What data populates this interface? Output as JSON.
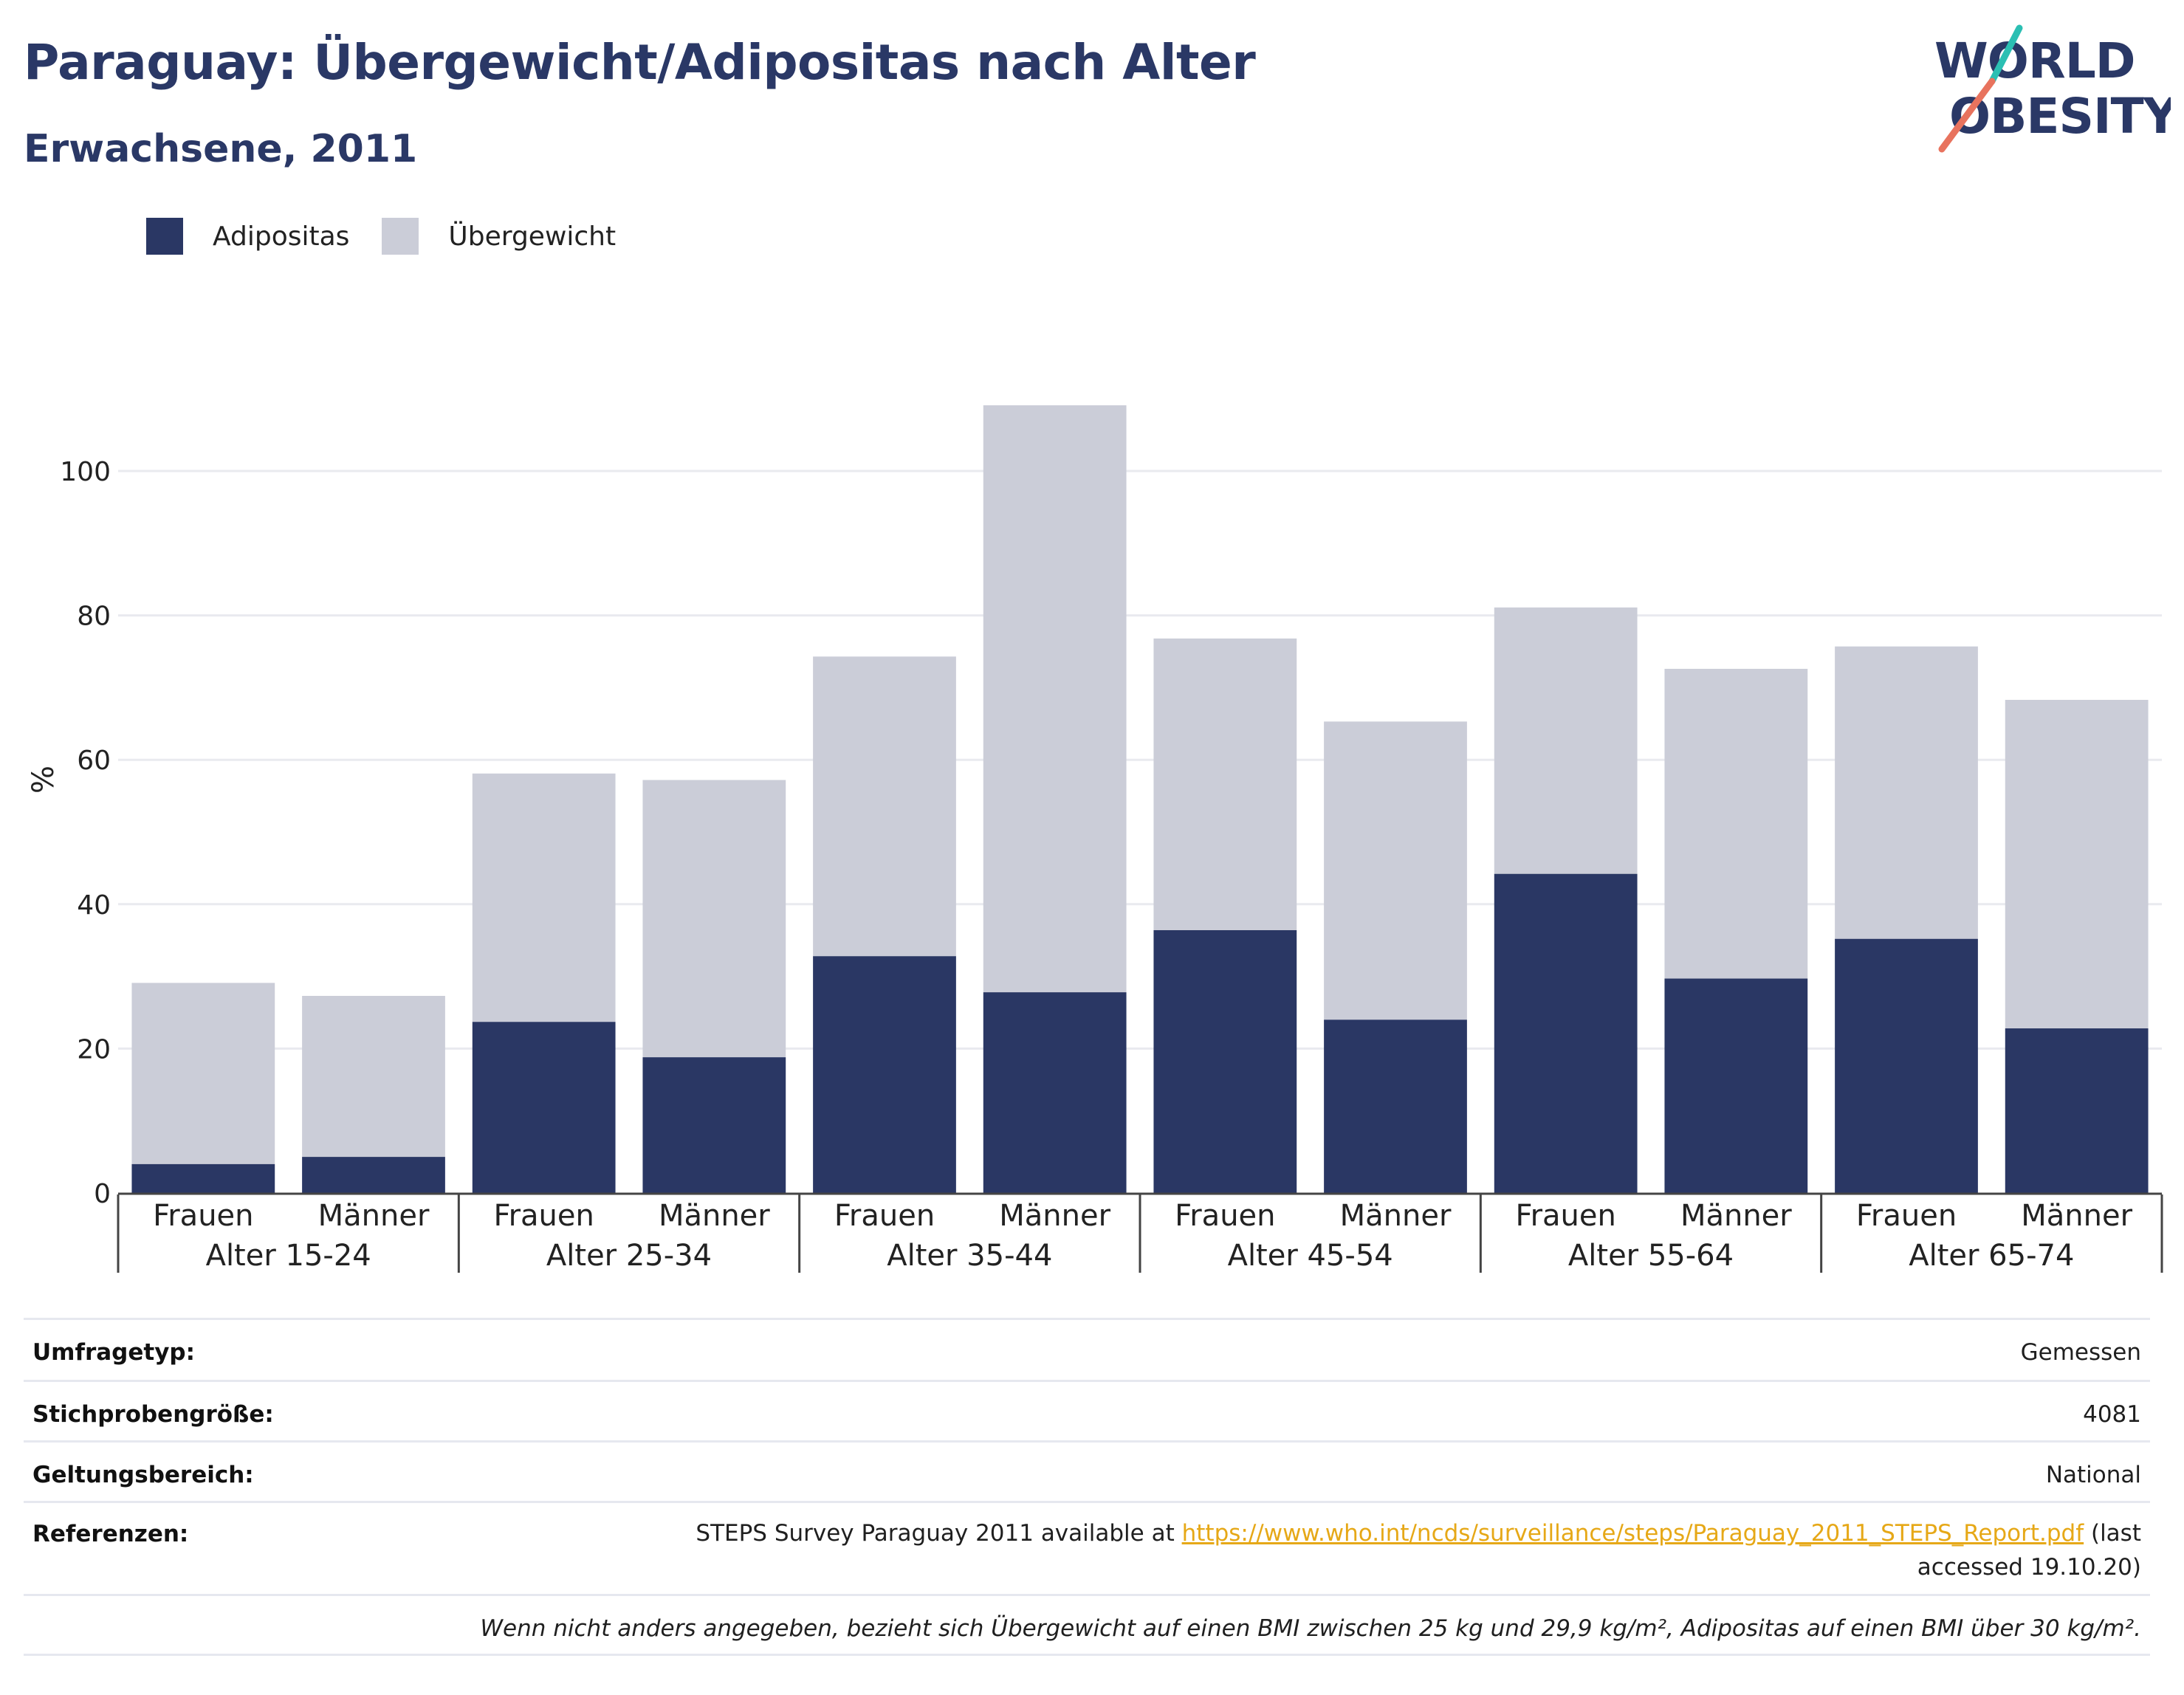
{
  "header": {
    "title": "Paraguay: Übergewicht/Adipositas nach Alter",
    "subtitle": "Erwachsene, 2011"
  },
  "logo": {
    "line1": "WORLD",
    "line2": "OBESITY"
  },
  "colors": {
    "adipositas": "#2a3764",
    "uebergewicht": "#cbcdd8",
    "title": "#2a3866",
    "link": "#e6a817",
    "logo_teal": "#2bbfb3",
    "logo_coral": "#e8735e"
  },
  "legend": {
    "items": [
      {
        "label": "Adipositas",
        "color": "#2a3764"
      },
      {
        "label": "Übergewicht",
        "color": "#cbcdd8"
      }
    ]
  },
  "chart_data": {
    "type": "bar",
    "stacked": true,
    "ylabel": "%",
    "ylim": [
      0,
      115
    ],
    "yticks": [
      0,
      20,
      40,
      60,
      80,
      100
    ],
    "grid": true,
    "legend_position": "top-left",
    "groups": [
      "Alter 15-24",
      "Alter 25-34",
      "Alter 35-44",
      "Alter 45-54",
      "Alter 55-64",
      "Alter 65-74"
    ],
    "subcategories": [
      "Frauen",
      "Männer"
    ],
    "series": [
      {
        "name": "Adipositas",
        "values": [
          4.0,
          5.0,
          23.7,
          18.8,
          32.8,
          27.8,
          36.4,
          24.0,
          44.2,
          29.7,
          35.2,
          22.8
        ]
      },
      {
        "name": "Übergewicht",
        "values": [
          25.1,
          22.3,
          34.4,
          38.4,
          41.5,
          81.3,
          40.4,
          41.3,
          36.9,
          42.9,
          40.5,
          45.5
        ]
      }
    ]
  },
  "meta": {
    "survey_type": {
      "label": "Umfragetyp:",
      "value": "Gemessen"
    },
    "sample_size": {
      "label": "Stichprobengröße:",
      "value": "4081"
    },
    "scope": {
      "label": "Geltungsbereich:",
      "value": "National"
    },
    "references": {
      "label": "Referenzen:",
      "text_before": "STEPS Survey Paraguay 2011 available at ",
      "link": "https://www.who.int/ncds/surveillance/steps/Paraguay_2011_STEPS_Report.pdf",
      "text_after": " (last accessed 19.10.20)"
    },
    "note": "Wenn nicht anders angegeben, bezieht sich Übergewicht auf einen BMI zwischen 25 kg und 29,9 kg/m², Adipositas auf einen BMI über 30 kg/m²."
  }
}
